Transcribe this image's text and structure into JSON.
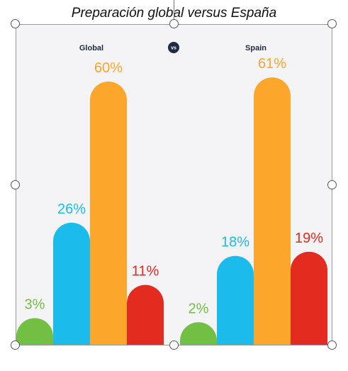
{
  "title": "Preparación global versus España",
  "chart_data": {
    "type": "bar",
    "title": "Preparación global versus España",
    "vs_label": "vs",
    "ylim": [
      0,
      70
    ],
    "colors": [
      "#72bf44",
      "#1bbcec",
      "#fca62b",
      "#e42b20"
    ],
    "panels": [
      {
        "name": "Global",
        "values": [
          3,
          26,
          60,
          11
        ],
        "labels": [
          "3%",
          "26%",
          "60%",
          "11%"
        ]
      },
      {
        "name": "Spain",
        "values": [
          2,
          18,
          61,
          19
        ],
        "labels": [
          "2%",
          "18%",
          "61%",
          "19%"
        ]
      }
    ]
  }
}
